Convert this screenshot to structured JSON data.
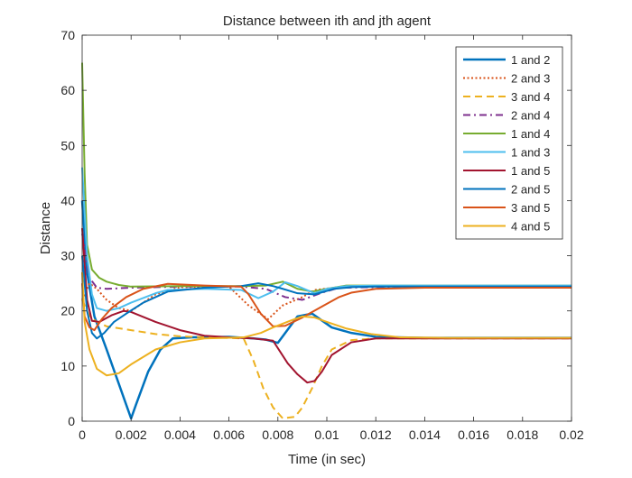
{
  "chart_data": {
    "type": "line",
    "title": "Distance between ith and jth agent",
    "xlabel": "Time (in sec)",
    "ylabel": "Distance",
    "xlim": [
      0,
      0.02
    ],
    "ylim": [
      0,
      70
    ],
    "grid": false,
    "legend_position": "top-right",
    "x_ticks": [
      0,
      0.002,
      0.004,
      0.006,
      0.008,
      0.01,
      0.012,
      0.014,
      0.016,
      0.018,
      0.02
    ],
    "x_tick_labels": [
      "0",
      "0.002",
      "0.004",
      "0.006",
      "0.008",
      "0.01",
      "0.012",
      "0.014",
      "0.016",
      "0.018",
      "0.02"
    ],
    "y_ticks": [
      0,
      10,
      20,
      30,
      40,
      50,
      60,
      70
    ],
    "y_tick_labels": [
      "0",
      "10",
      "20",
      "30",
      "40",
      "50",
      "60",
      "70"
    ],
    "series": [
      {
        "name": "1 and 2",
        "color": "#0072BD",
        "dash": "solid",
        "width": 2.5,
        "points": [
          [
            0,
            40
          ],
          [
            0.0002,
            27
          ],
          [
            0.0005,
            19
          ],
          [
            0.001,
            13
          ],
          [
            0.0014,
            8
          ],
          [
            0.0018,
            3
          ],
          [
            0.002,
            0.5
          ],
          [
            0.0022,
            3
          ],
          [
            0.0027,
            9
          ],
          [
            0.0032,
            13
          ],
          [
            0.0037,
            15
          ],
          [
            0.0045,
            15.2
          ],
          [
            0.006,
            15.3
          ],
          [
            0.007,
            15
          ],
          [
            0.0075,
            14.8
          ],
          [
            0.008,
            14.2
          ],
          [
            0.0088,
            19
          ],
          [
            0.0094,
            19.5
          ],
          [
            0.0102,
            17
          ],
          [
            0.011,
            16
          ],
          [
            0.012,
            15.3
          ],
          [
            0.014,
            15.1
          ],
          [
            0.02,
            15.1
          ]
        ]
      },
      {
        "name": "2 and 3",
        "color": "#D95319",
        "dash": "dot",
        "width": 2,
        "points": [
          [
            0,
            22
          ],
          [
            0.0003,
            25
          ],
          [
            0.0006,
            24
          ],
          [
            0.001,
            22
          ],
          [
            0.0015,
            20.5
          ],
          [
            0.002,
            20
          ],
          [
            0.003,
            23
          ],
          [
            0.004,
            24.3
          ],
          [
            0.006,
            24.4
          ],
          [
            0.0068,
            21
          ],
          [
            0.0076,
            18.5
          ],
          [
            0.0082,
            21
          ],
          [
            0.009,
            22.5
          ],
          [
            0.0095,
            23.8
          ],
          [
            0.0105,
            24.3
          ],
          [
            0.012,
            24.4
          ],
          [
            0.02,
            24.4
          ]
        ]
      },
      {
        "name": "3 and 4",
        "color": "#EDB120",
        "dash": "dash",
        "width": 2,
        "points": [
          [
            0,
            22
          ],
          [
            0.0003,
            19
          ],
          [
            0.0006,
            18
          ],
          [
            0.001,
            17.2
          ],
          [
            0.002,
            16.5
          ],
          [
            0.003,
            15.8
          ],
          [
            0.004,
            15.4
          ],
          [
            0.005,
            15.2
          ],
          [
            0.0066,
            15
          ],
          [
            0.007,
            11
          ],
          [
            0.0074,
            6
          ],
          [
            0.0078,
            2.5
          ],
          [
            0.0082,
            0.5
          ],
          [
            0.0087,
            0.8
          ],
          [
            0.009,
            2.5
          ],
          [
            0.0094,
            6
          ],
          [
            0.0098,
            10
          ],
          [
            0.0102,
            13
          ],
          [
            0.011,
            14.7
          ],
          [
            0.012,
            15
          ],
          [
            0.02,
            15
          ]
        ]
      },
      {
        "name": "2 and 4",
        "color": "#7E2F8E",
        "dash": "dashdot",
        "width": 2,
        "points": [
          [
            0,
            34
          ],
          [
            0.0003,
            26
          ],
          [
            0.0006,
            24.2
          ],
          [
            0.001,
            24
          ],
          [
            0.002,
            24.2
          ],
          [
            0.004,
            24.4
          ],
          [
            0.0065,
            24.4
          ],
          [
            0.0075,
            24
          ],
          [
            0.0083,
            22.5
          ],
          [
            0.009,
            22
          ],
          [
            0.0098,
            23.3
          ],
          [
            0.0105,
            24.2
          ],
          [
            0.012,
            24.3
          ],
          [
            0.02,
            24.3
          ]
        ]
      },
      {
        "name": "1 and 4",
        "color": "#77AC30",
        "dash": "solid",
        "width": 2,
        "points": [
          [
            0,
            65
          ],
          [
            0.0001,
            45
          ],
          [
            0.0002,
            32
          ],
          [
            0.0004,
            27.5
          ],
          [
            0.0007,
            26
          ],
          [
            0.001,
            25.3
          ],
          [
            0.0015,
            24.7
          ],
          [
            0.002,
            24.4
          ],
          [
            0.004,
            24.5
          ],
          [
            0.0065,
            24.5
          ],
          [
            0.0075,
            24.6
          ],
          [
            0.0082,
            25.3
          ],
          [
            0.0088,
            24
          ],
          [
            0.0094,
            23.5
          ],
          [
            0.01,
            24
          ],
          [
            0.0108,
            24.6
          ],
          [
            0.012,
            24.6
          ],
          [
            0.02,
            24.6
          ]
        ]
      },
      {
        "name": "1 and 3",
        "color": "#4DBEEE",
        "dash": "solid",
        "width": 2,
        "points": [
          [
            0,
            46
          ],
          [
            0.0002,
            30
          ],
          [
            0.0004,
            23
          ],
          [
            0.0006,
            20.5
          ],
          [
            0.001,
            20
          ],
          [
            0.0015,
            20.5
          ],
          [
            0.002,
            21.5
          ],
          [
            0.003,
            23.2
          ],
          [
            0.0035,
            23.8
          ],
          [
            0.005,
            24
          ],
          [
            0.0065,
            23.8
          ],
          [
            0.0072,
            22.3
          ],
          [
            0.0078,
            23.5
          ],
          [
            0.0083,
            25.2
          ],
          [
            0.0088,
            24.5
          ],
          [
            0.0095,
            23.2
          ],
          [
            0.01,
            24
          ],
          [
            0.0108,
            24.5
          ],
          [
            0.012,
            24.6
          ],
          [
            0.02,
            24.6
          ]
        ]
      },
      {
        "name": "1 and 5",
        "color": "#A2142F",
        "dash": "solid",
        "width": 2,
        "points": [
          [
            0,
            35
          ],
          [
            0.0002,
            22
          ],
          [
            0.0004,
            18.2
          ],
          [
            0.0007,
            18
          ],
          [
            0.0012,
            19.2
          ],
          [
            0.0017,
            20
          ],
          [
            0.002,
            19.8
          ],
          [
            0.003,
            18
          ],
          [
            0.004,
            16.5
          ],
          [
            0.005,
            15.5
          ],
          [
            0.006,
            15.2
          ],
          [
            0.007,
            15
          ],
          [
            0.0078,
            14.6
          ],
          [
            0.0084,
            10.5
          ],
          [
            0.0088,
            8.5
          ],
          [
            0.0092,
            7
          ],
          [
            0.0095,
            7.3
          ],
          [
            0.0098,
            9
          ],
          [
            0.0102,
            12
          ],
          [
            0.011,
            14.3
          ],
          [
            0.012,
            15
          ],
          [
            0.02,
            15
          ]
        ]
      },
      {
        "name": "2 and 5",
        "color": "#0072BD",
        "dash": "solid",
        "width": 2,
        "points": [
          [
            0,
            30
          ],
          [
            0.0002,
            20
          ],
          [
            0.0004,
            16
          ],
          [
            0.0006,
            15
          ],
          [
            0.0009,
            16
          ],
          [
            0.0013,
            18
          ],
          [
            0.0018,
            19.5
          ],
          [
            0.0025,
            21.5
          ],
          [
            0.0035,
            23.5
          ],
          [
            0.005,
            24.2
          ],
          [
            0.0065,
            24.5
          ],
          [
            0.0072,
            25
          ],
          [
            0.0078,
            24.5
          ],
          [
            0.0082,
            24
          ],
          [
            0.0088,
            23.2
          ],
          [
            0.0095,
            23
          ],
          [
            0.0103,
            24
          ],
          [
            0.011,
            24.3
          ],
          [
            0.012,
            24.4
          ],
          [
            0.02,
            24.4
          ]
        ]
      },
      {
        "name": "3 and 5",
        "color": "#D95319",
        "dash": "solid",
        "width": 2,
        "points": [
          [
            0,
            25
          ],
          [
            0.0001,
            19
          ],
          [
            0.0003,
            17
          ],
          [
            0.0005,
            16.5
          ],
          [
            0.0008,
            18.5
          ],
          [
            0.0012,
            20.5
          ],
          [
            0.0018,
            22.5
          ],
          [
            0.0025,
            24
          ],
          [
            0.0035,
            24.9
          ],
          [
            0.005,
            24.6
          ],
          [
            0.0065,
            24.4
          ],
          [
            0.0068,
            23
          ],
          [
            0.0073,
            19.5
          ],
          [
            0.0078,
            17.2
          ],
          [
            0.0083,
            17.3
          ],
          [
            0.009,
            18.8
          ],
          [
            0.0098,
            20.8
          ],
          [
            0.0105,
            22.5
          ],
          [
            0.011,
            23.3
          ],
          [
            0.012,
            24
          ],
          [
            0.014,
            24.2
          ],
          [
            0.02,
            24.2
          ]
        ]
      },
      {
        "name": "4 and 5",
        "color": "#EDB120",
        "dash": "solid",
        "width": 2,
        "points": [
          [
            0,
            27
          ],
          [
            0.0001,
            18
          ],
          [
            0.0003,
            13
          ],
          [
            0.0006,
            9.5
          ],
          [
            0.001,
            8.3
          ],
          [
            0.0015,
            8.7
          ],
          [
            0.002,
            10.3
          ],
          [
            0.003,
            13
          ],
          [
            0.004,
            14.3
          ],
          [
            0.005,
            15
          ],
          [
            0.0066,
            15.2
          ],
          [
            0.0073,
            16
          ],
          [
            0.0078,
            17
          ],
          [
            0.0085,
            18.2
          ],
          [
            0.009,
            19
          ],
          [
            0.0095,
            18.8
          ],
          [
            0.01,
            18
          ],
          [
            0.0108,
            16.8
          ],
          [
            0.0118,
            15.8
          ],
          [
            0.013,
            15.2
          ],
          [
            0.015,
            15.1
          ],
          [
            0.02,
            15.1
          ]
        ]
      }
    ]
  }
}
